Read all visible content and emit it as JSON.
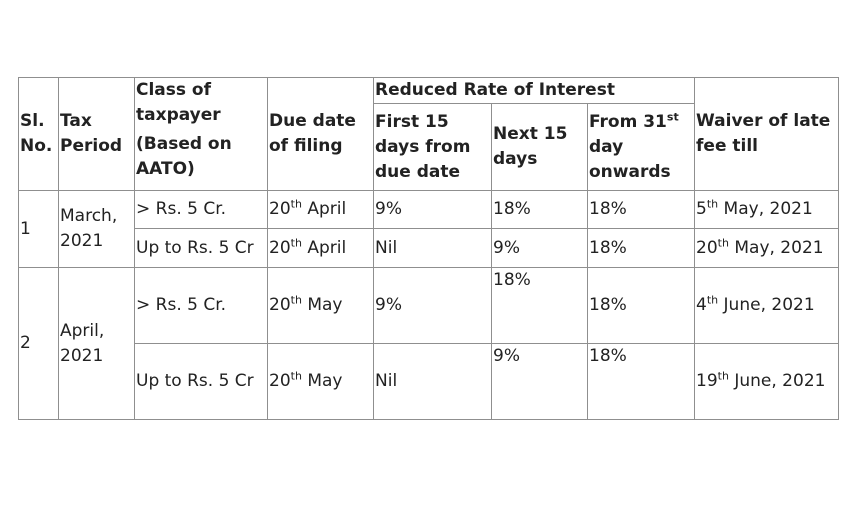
{
  "headers": {
    "sl_no_line1": "Sl.",
    "sl_no_line2": "No.",
    "tax_period_line1": "Tax",
    "tax_period_line2": "Period",
    "class_line1": "Class of",
    "class_line2": "taxpayer",
    "class_line3": "(Based on",
    "class_line4": "AATO)",
    "due_date_line1": "Due date",
    "due_date_line2": "of filing",
    "reduced_rate": "Reduced Rate of Interest",
    "first15_line1": "First 15",
    "first15_line2": "days from",
    "first15_line3": "due date",
    "next15_line1": "Next 15",
    "next15_line2": "days",
    "from31_pre": "From 31",
    "from31_sup": "st",
    "from31_line2": "day",
    "from31_line3": "onwards",
    "waiver_line1": "Waiver of late",
    "waiver_line2": "fee till"
  },
  "groups": [
    {
      "sl": "1",
      "period_line1": "March,",
      "period_line2": "2021",
      "rows": [
        {
          "class": "> Rs. 5 Cr.",
          "due_num": "20",
          "due_sup": "th",
          "due_rest": " April",
          "first15": "9%",
          "next15": "18%",
          "from31": "18%",
          "waiver_num": "5",
          "waiver_sup": "th",
          "waiver_rest": " May, 2021"
        },
        {
          "class": "Up to Rs. 5 Cr",
          "due_num": "20",
          "due_sup": "th",
          "due_rest": " April",
          "first15": "Nil",
          "next15": "9%",
          "from31": "18%",
          "waiver_num": "20",
          "waiver_sup": "th",
          "waiver_rest": " May, 2021"
        }
      ]
    },
    {
      "sl": "2",
      "period_line1": "April,",
      "period_line2": "2021",
      "rows": [
        {
          "class": "> Rs. 5 Cr.",
          "due_num": "20",
          "due_sup": "th",
          "due_rest": " May",
          "first15": "9%",
          "next15": "18%",
          "from31": "18%",
          "waiver_num": "4",
          "waiver_sup": "th",
          "waiver_rest": " June, 2021"
        },
        {
          "class": "Up to Rs. 5 Cr",
          "due_num": "20",
          "due_sup": "th",
          "due_rest": " May",
          "first15": "Nil",
          "next15": "9%",
          "from31": "18%",
          "waiver_num": "19",
          "waiver_sup": "th",
          "waiver_rest": " June, 2021"
        }
      ]
    }
  ]
}
